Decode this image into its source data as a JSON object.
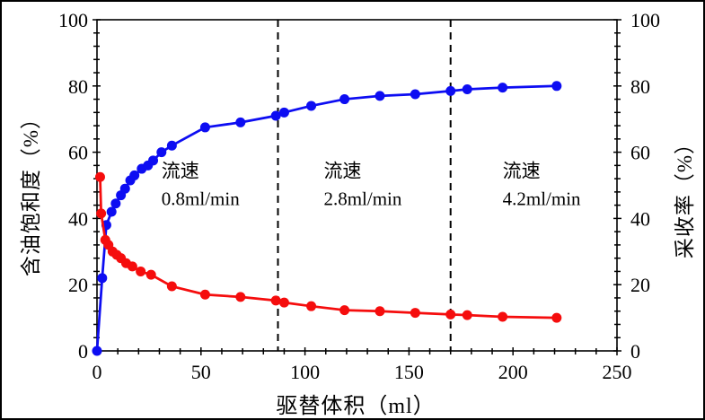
{
  "figure": {
    "background": "#ffffff",
    "border_color": "#000000"
  },
  "chart_data": {
    "type": "line",
    "title": "",
    "xlabel": "驱替体积（ml）",
    "ylabel_left": "含油饱和度（%）",
    "ylabel_right": "采收率（%）",
    "xlim": [
      0,
      250
    ],
    "ylim_left": [
      0,
      100
    ],
    "ylim_right": [
      0,
      100
    ],
    "x_major_ticks": [
      0,
      50,
      100,
      150,
      200,
      250
    ],
    "x_minor_step": 10,
    "y_major_ticks": [
      0,
      20,
      40,
      60,
      80,
      100
    ],
    "y_minor_step": 4,
    "grid": false,
    "legend": "none",
    "axis_color": "#000000",
    "series": [
      {
        "name": "采收率",
        "axis": "right",
        "color": "#0d0df2",
        "marker": "circle",
        "x": [
          0,
          2.5,
          4.5,
          7,
          9,
          11.5,
          13.5,
          16,
          18,
          21.5,
          24.5,
          27,
          31,
          36,
          52,
          69,
          86,
          90,
          103,
          119,
          136,
          153,
          170,
          178,
          195,
          221
        ],
        "y": [
          0,
          22,
          38,
          42,
          44.5,
          47,
          49,
          51.5,
          53,
          55,
          56,
          57.5,
          60,
          62,
          67.5,
          69,
          71,
          72,
          74,
          76,
          77,
          77.5,
          78.5,
          79,
          79.5,
          80
        ]
      },
      {
        "name": "含油饱和度",
        "axis": "left",
        "color": "#f50d0d",
        "marker": "circle",
        "x": [
          1.5,
          2,
          4,
          5.5,
          7.5,
          9.5,
          11.5,
          14,
          17,
          21,
          26,
          36,
          52,
          69,
          86,
          90,
          103,
          119,
          136,
          153,
          170,
          178,
          195,
          221
        ],
        "y": [
          52.5,
          41.5,
          33.5,
          32,
          30,
          29,
          28,
          26.5,
          25.5,
          24,
          23,
          19.5,
          17,
          16.3,
          15.2,
          14.6,
          13.5,
          12.3,
          12,
          11.5,
          11,
          10.8,
          10.3,
          10
        ]
      }
    ],
    "vlines": [
      {
        "x": 87,
        "style": "dashed",
        "color": "#000000"
      },
      {
        "x": 170,
        "style": "dashed",
        "color": "#000000"
      }
    ],
    "annotations": [
      {
        "lines": [
          "流速",
          "0.8ml/min"
        ],
        "x": 31,
        "y": 57
      },
      {
        "lines": [
          "流速",
          "2.8ml/min"
        ],
        "x": 109,
        "y": 57
      },
      {
        "lines": [
          "流速",
          "4.2ml/min"
        ],
        "x": 195,
        "y": 57
      }
    ]
  }
}
